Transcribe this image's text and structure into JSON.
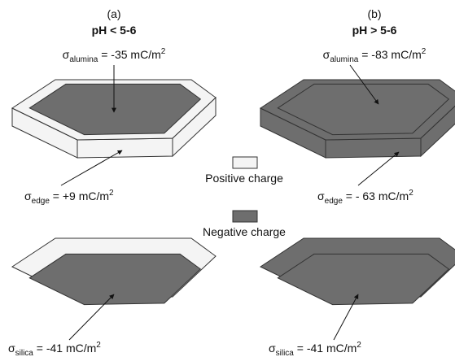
{
  "panels": [
    {
      "letter": "(a)",
      "condition": "pH < 5-6",
      "alumina": {
        "symbol": "σ",
        "subscript": "alumina",
        "text": " = -35 mC/m",
        "superscript": "2"
      },
      "edge": {
        "symbol": "σ",
        "subscript": "edge",
        "text": " = +9 mC/m",
        "superscript": "2"
      },
      "silica": {
        "symbol": "σ",
        "subscript": "silica",
        "text": " = -41 mC/m",
        "superscript": "2"
      }
    },
    {
      "letter": "(b)",
      "condition": "pH > 5-6",
      "alumina": {
        "symbol": "σ",
        "subscript": "alumina",
        "text": " = -83 mC/m",
        "superscript": "2"
      },
      "edge": {
        "symbol": "σ",
        "subscript": "edge",
        "text": " = - 63 mC/m",
        "superscript": "2"
      },
      "silica": {
        "symbol": "σ",
        "subscript": "silica",
        "text": " = -41 mC/m",
        "superscript": "2"
      }
    }
  ],
  "legend": {
    "positive": "Positive charge",
    "negative": "Negative charge"
  }
}
